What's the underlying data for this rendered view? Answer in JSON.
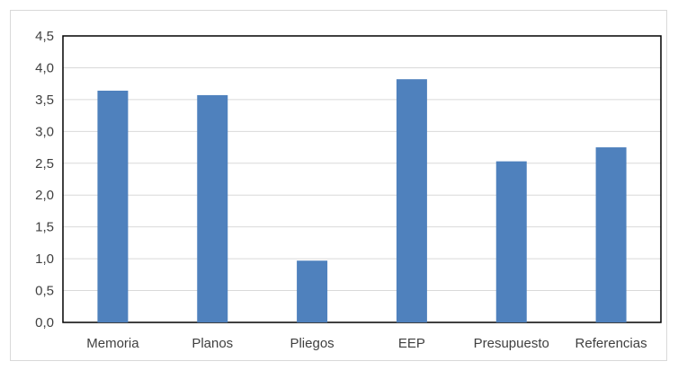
{
  "chart_data": {
    "type": "bar",
    "categories": [
      "Memoria",
      "Planos",
      "Pliegos",
      "EEP",
      "Presupuesto",
      "Referencias"
    ],
    "values": [
      3.64,
      3.57,
      0.97,
      3.82,
      2.53,
      2.75
    ],
    "ylim": [
      0,
      4.5
    ],
    "yticks": [
      "0,0",
      "0,5",
      "1,0",
      "1,5",
      "2,0",
      "2,5",
      "3,0",
      "3,5",
      "4,0",
      "4,5"
    ],
    "ytick_step": 0.5,
    "grid": true,
    "legend": "none",
    "colors": {
      "bar": "#4f81bd",
      "grid": "#d9d9d9",
      "axis": "#000000",
      "text": "#404040"
    }
  }
}
